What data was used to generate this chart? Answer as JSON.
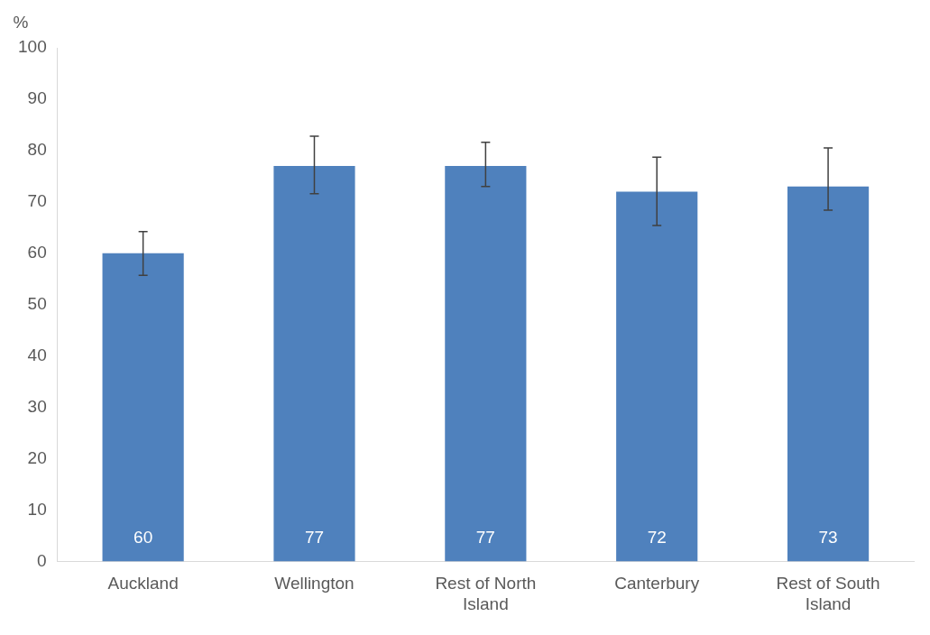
{
  "chart_data": {
    "type": "bar",
    "ylabel": "%",
    "categories": [
      "Auckland",
      "Wellington",
      "Rest of North Island",
      "Canterbury",
      "Rest of South Island"
    ],
    "values": [
      60,
      77,
      77,
      72,
      73
    ],
    "errors": [
      [
        55.7,
        64.2
      ],
      [
        71.6,
        82.8
      ],
      [
        73.0,
        81.6
      ],
      [
        65.4,
        78.7
      ],
      [
        68.4,
        80.5
      ]
    ],
    "color": "#4f81bd",
    "ylim": [
      0,
      100
    ],
    "yticks": [
      0,
      10,
      20,
      30,
      40,
      50,
      60,
      70,
      80,
      90,
      100
    ],
    "grid": false,
    "legend": false,
    "data_labels": true
  }
}
